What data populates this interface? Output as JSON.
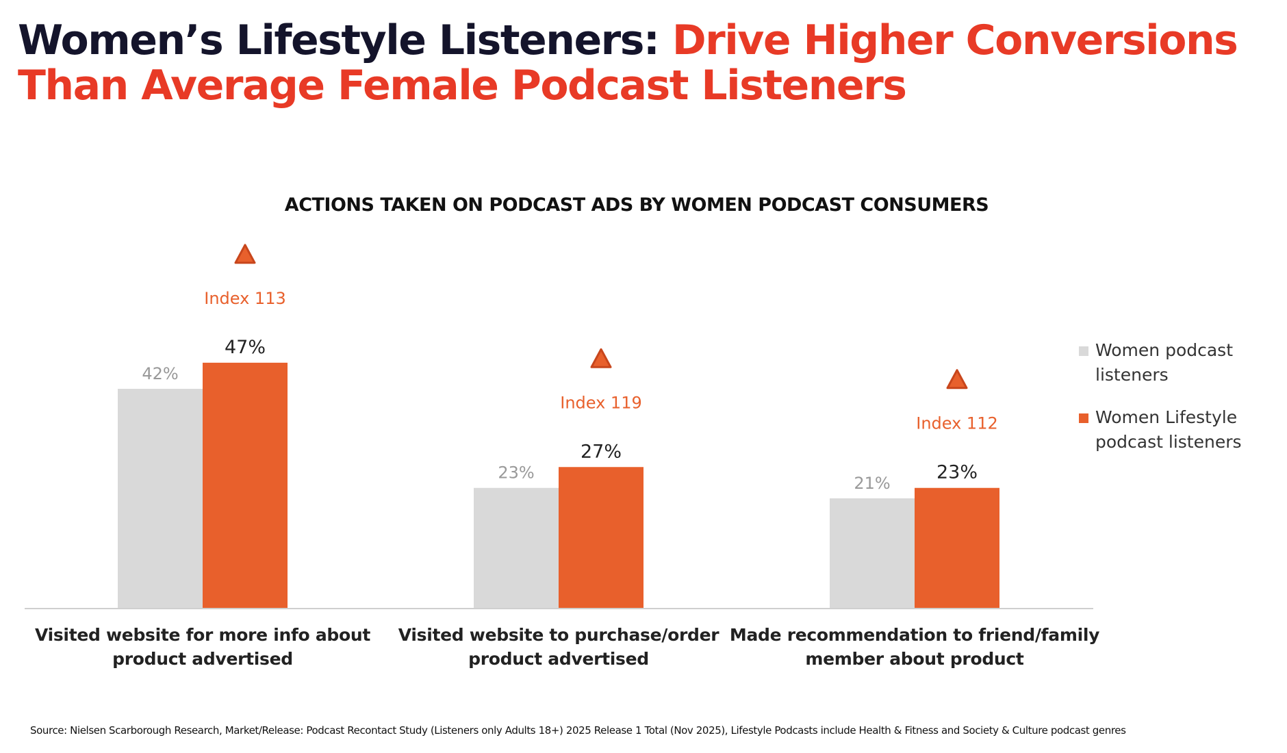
{
  "title": {
    "part1": "Women’s Lifestyle Listeners: ",
    "part2": "Drive Higher Conversions",
    "line2": "Than Average Female Podcast Listeners"
  },
  "colors": {
    "title_dark": "#14142b",
    "title_accent": "#e83a26",
    "women": "#d9d9d9",
    "lifestyle": "#e8602c",
    "index": "#e8602c"
  },
  "chart_data": {
    "type": "bar",
    "title": "ACTIONS TAKEN ON PODCAST ADS BY WOMEN PODCAST CONSUMERS",
    "categories": [
      [
        "Visited website for more info about",
        "product advertised"
      ],
      [
        "Visited website to purchase/order",
        "product advertised"
      ],
      [
        "Made recommendation to friend/family",
        "member about product"
      ]
    ],
    "series": [
      {
        "name": "Women podcast listeners",
        "values": [
          42,
          23,
          21
        ],
        "labels": [
          "42%",
          "23%",
          "21%"
        ]
      },
      {
        "name": "Women Lifestyle podcast listeners",
        "values": [
          47,
          27,
          23
        ],
        "labels": [
          "47%",
          "27%",
          "23%"
        ]
      }
    ],
    "annotations": [
      "Index 113",
      "Index 119",
      "Index 112"
    ],
    "annotation_icon": "triangle-up-icon",
    "ylim": [
      0,
      50
    ],
    "grid": false,
    "legend_placement": "right"
  },
  "source": "Source: Nielsen Scarborough Research, Market/Release: Podcast Recontact Study (Listeners only Adults 18+) 2025 Release 1 Total (Nov 2025), Lifestyle Podcasts include Health & Fitness and Society & Culture podcast genres"
}
